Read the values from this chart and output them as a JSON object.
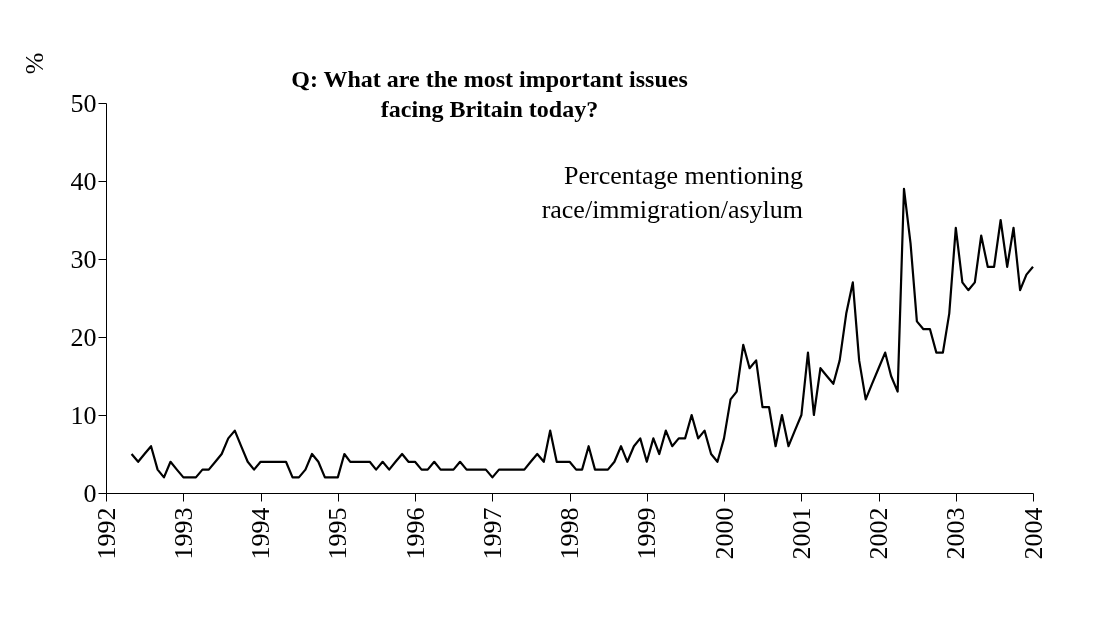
{
  "chart_data": {
    "type": "line",
    "title": "Q: What are the most important issues\nfacing Britain today?",
    "ylabel": "%",
    "x": [
      "1992-05",
      "1992-06",
      "1992-07",
      "1992-08",
      "1992-09",
      "1992-10",
      "1992-11",
      "1992-12",
      "1993-01",
      "1993-02",
      "1993-03",
      "1993-04",
      "1993-05",
      "1993-06",
      "1993-07",
      "1993-08",
      "1993-09",
      "1993-10",
      "1993-11",
      "1993-12",
      "1994-01",
      "1994-02",
      "1994-03",
      "1994-04",
      "1994-05",
      "1994-06",
      "1994-07",
      "1994-08",
      "1994-09",
      "1994-10",
      "1994-11",
      "1994-12",
      "1995-01",
      "1995-02",
      "1995-03",
      "1995-04",
      "1995-05",
      "1995-06",
      "1995-07",
      "1995-08",
      "1995-09",
      "1995-10",
      "1995-11",
      "1995-12",
      "1996-01",
      "1996-02",
      "1996-03",
      "1996-04",
      "1996-05",
      "1996-06",
      "1996-07",
      "1996-08",
      "1996-09",
      "1996-10",
      "1996-11",
      "1996-12",
      "1997-01",
      "1997-02",
      "1997-03",
      "1997-04",
      "1997-05",
      "1997-06",
      "1997-07",
      "1997-08",
      "1997-09",
      "1997-10",
      "1997-11",
      "1997-12",
      "1998-01",
      "1998-02",
      "1998-03",
      "1998-04",
      "1998-05",
      "1998-06",
      "1998-07",
      "1998-08",
      "1998-09",
      "1998-10",
      "1998-11",
      "1998-12",
      "1999-01",
      "1999-02",
      "1999-03",
      "1999-04",
      "1999-05",
      "1999-06",
      "1999-07",
      "1999-08",
      "1999-09",
      "1999-10",
      "1999-11",
      "1999-12",
      "2000-01",
      "2000-02",
      "2000-03",
      "2000-04",
      "2000-05",
      "2000-06",
      "2000-07",
      "2000-08",
      "2000-09",
      "2000-10",
      "2000-11",
      "2000-12",
      "2001-01",
      "2001-02",
      "2001-03",
      "2001-04",
      "2001-05",
      "2001-06",
      "2001-07",
      "2001-08",
      "2001-09",
      "2001-10",
      "2001-11",
      "2001-12",
      "2002-01",
      "2002-02",
      "2002-03",
      "2002-04",
      "2002-05",
      "2002-06",
      "2002-07",
      "2002-08",
      "2002-09",
      "2002-10",
      "2002-11",
      "2002-12",
      "2003-01",
      "2003-02",
      "2003-03",
      "2003-04",
      "2003-05",
      "2003-06",
      "2003-07",
      "2003-08",
      "2003-09",
      "2003-10",
      "2003-11",
      "2003-12",
      "2004-01"
    ],
    "series": [
      {
        "name": "Percentage mentioning\nrace/immigration/asylum",
        "color": "#000000",
        "values": [
          5,
          4,
          5,
          6,
          3,
          2,
          4,
          3,
          2,
          2,
          2,
          3,
          3,
          4,
          5,
          7,
          8,
          6,
          4,
          3,
          4,
          4,
          4,
          4,
          4,
          2,
          2,
          3,
          5,
          4,
          2,
          2,
          2,
          5,
          4,
          4,
          4,
          4,
          3,
          4,
          3,
          4,
          5,
          4,
          4,
          3,
          3,
          4,
          3,
          3,
          3,
          4,
          3,
          3,
          3,
          3,
          2,
          3,
          3,
          3,
          3,
          3,
          4,
          5,
          4,
          8,
          4,
          4,
          4,
          3,
          3,
          6,
          3,
          3,
          3,
          4,
          6,
          4,
          6,
          7,
          4,
          7,
          5,
          8,
          6,
          7,
          7,
          10,
          7,
          8,
          5,
          4,
          7,
          12,
          13,
          19,
          16,
          17,
          11,
          11,
          6,
          10,
          6,
          8,
          10,
          18,
          10,
          16,
          15,
          14,
          17,
          23,
          27,
          17,
          12,
          14,
          16,
          18,
          15,
          13,
          39,
          32,
          22,
          21,
          21,
          18,
          18,
          23,
          34,
          27,
          26,
          27,
          33,
          29,
          29,
          35,
          29,
          34,
          26,
          28,
          29
        ]
      }
    ],
    "xlim": [
      "1992",
      "2004"
    ],
    "xticks": [
      "1992",
      "1993",
      "1994",
      "1995",
      "1996",
      "1997",
      "1998",
      "1999",
      "2000",
      "2001",
      "2002",
      "2003",
      "2004"
    ],
    "ylim": [
      0,
      50
    ],
    "yticks": [
      0,
      10,
      20,
      30,
      40,
      50
    ],
    "grid": false,
    "legend": false,
    "marker": "none",
    "line_style": "solid"
  }
}
